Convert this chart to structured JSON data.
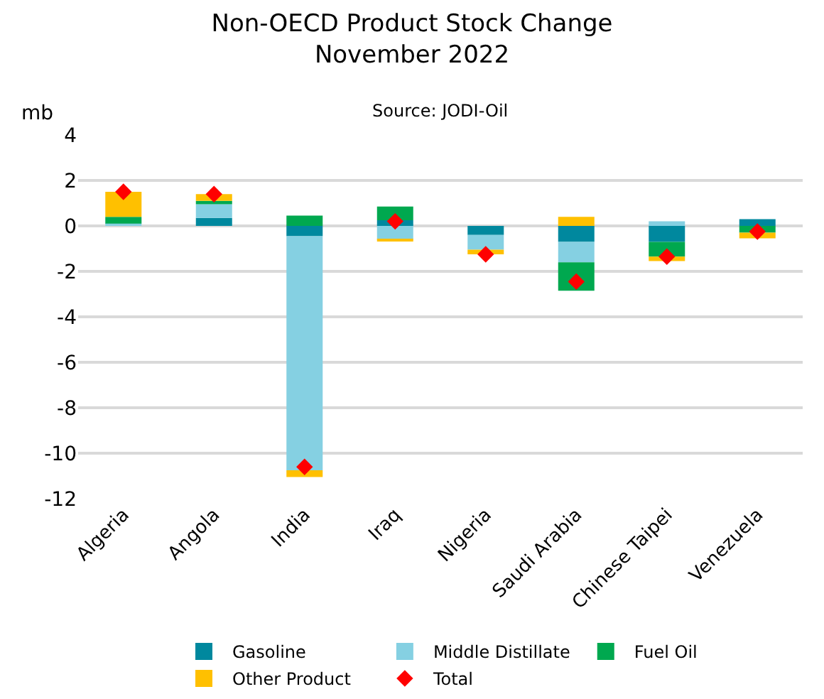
{
  "chart_data": {
    "type": "bar",
    "title": "Non-OECD Product Stock Change\nNovember 2022",
    "ylabel": "mb",
    "annotations": [
      "Source: JODI-Oil"
    ],
    "categories": [
      "Algeria",
      "Angola",
      "India",
      "Iraq",
      "Nigeria",
      "Saudi Arabia",
      "Chinese Taipei",
      "Venezuela"
    ],
    "stacked": true,
    "series": [
      {
        "name": "Gasoline",
        "color": "#00889e",
        "values": [
          0,
          0.35,
          -0.45,
          0.25,
          -0.4,
          -0.7,
          -0.7,
          0.3
        ]
      },
      {
        "name": "Middle Distillate",
        "color": "#85d0e2",
        "values": [
          0.1,
          0.6,
          -10.3,
          -0.6,
          -0.65,
          -0.9,
          0.2,
          0
        ]
      },
      {
        "name": "Fuel Oil",
        "color": "#00a84f",
        "values": [
          0.3,
          0.15,
          0.45,
          0.6,
          0,
          -1.25,
          -0.65,
          -0.3
        ]
      },
      {
        "name": "Other Product",
        "color": "#ffc000",
        "values": [
          1.1,
          0.3,
          -0.3,
          -0.05,
          -0.2,
          0.4,
          -0.2,
          -0.25
        ]
      },
      {
        "name": "Total",
        "type": "scatter",
        "marker": "diamond",
        "color": "#ff0000",
        "x": [
          "Algeria",
          "Angola",
          "India",
          "Iraq",
          "Nigeria",
          "Saudi Arabia",
          "Chinese Taipei",
          "Venezuela"
        ],
        "values": [
          1.5,
          1.4,
          -10.6,
          0.2,
          -1.25,
          -2.45,
          -1.35,
          -0.25
        ]
      }
    ],
    "ylim": [
      -12,
      4
    ],
    "yticks": [
      -12,
      -10,
      -8,
      -6,
      -4,
      -2,
      0,
      2,
      4
    ],
    "grid": "y",
    "legend": "bottom"
  }
}
